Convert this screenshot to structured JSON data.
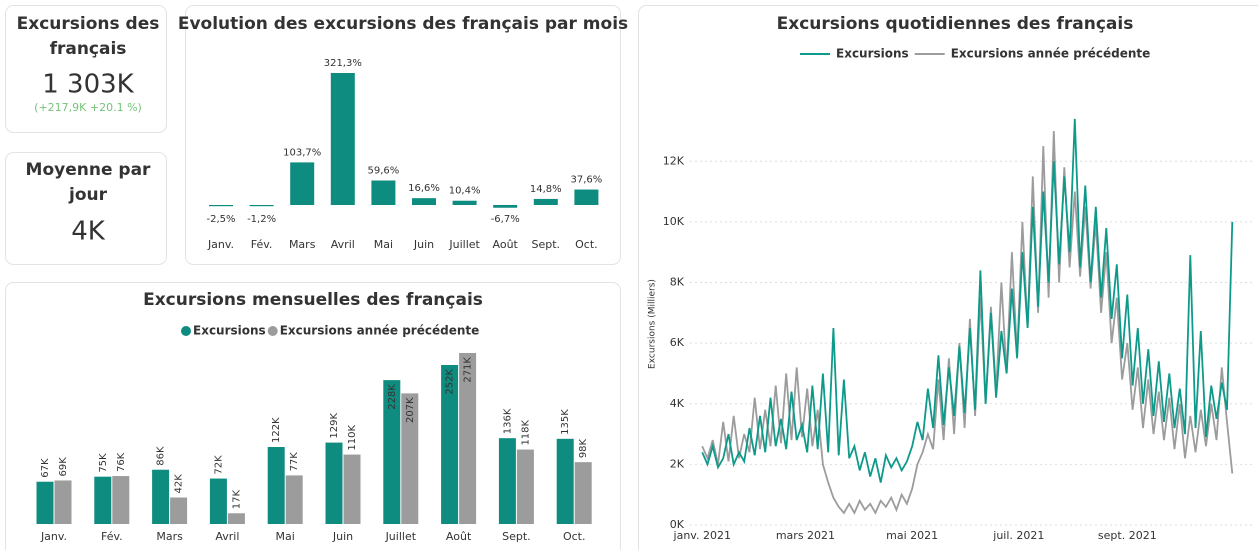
{
  "cards": [
    {
      "title": "Excursions des français",
      "value": "1 303K",
      "delta": "(+217,9K +20.1 %)"
    },
    {
      "title": "Moyenne par jour",
      "value": "4K"
    }
  ],
  "chart_data": [
    {
      "type": "bar",
      "title": "Evolution des excursions des français par mois",
      "categories": [
        "Janv.",
        "Fév.",
        "Mars",
        "Avril",
        "Mai",
        "Juin",
        "Juillet",
        "Août",
        "Sept.",
        "Oct."
      ],
      "values": [
        -2.5,
        -1.2,
        103.7,
        321.3,
        59.6,
        16.6,
        10.4,
        -6.7,
        14.8,
        37.6
      ],
      "value_labels": [
        "-2,5%",
        "-1,2%",
        "103,7%",
        "321,3%",
        "59,6%",
        "16,6%",
        "10,4%",
        "-6,7%",
        "14,8%",
        "37,6%"
      ],
      "color": "#0e8c7f"
    },
    {
      "type": "bar",
      "title": "Excursions mensuelles des français",
      "categories": [
        "Janv.",
        "Fév.",
        "Mars",
        "Avril",
        "Mai",
        "Juin",
        "Juillet",
        "Août",
        "Sept.",
        "Oct."
      ],
      "series": [
        {
          "name": "Excursions",
          "color": "#0e8c7f",
          "values": [
            67,
            75,
            86,
            72,
            122,
            129,
            228,
            252,
            136,
            135
          ],
          "value_labels": [
            "67K",
            "75K",
            "86K",
            "72K",
            "122K",
            "129K",
            "228K",
            "252K",
            "136K",
            "135K"
          ]
        },
        {
          "name": "Excursions année précédente",
          "color": "#9c9c9c",
          "values": [
            69,
            76,
            42,
            17,
            77,
            110,
            207,
            271,
            118,
            98
          ],
          "value_labels": [
            "69K",
            "76K",
            "42K",
            "17K",
            "77K",
            "110K",
            "207K",
            "271K",
            "118K",
            "98K"
          ]
        }
      ]
    },
    {
      "type": "line",
      "title": "Excursions quotidiennes des français",
      "ylabel": "Excursions (Milliers)",
      "grid": true,
      "x": [
        0,
        3,
        6,
        9,
        12,
        15,
        18,
        21,
        24,
        27,
        30,
        33,
        36,
        39,
        42,
        45,
        48,
        51,
        54,
        57,
        60,
        63,
        66,
        69,
        72,
        75,
        78,
        81,
        84,
        87,
        90,
        93,
        96,
        99,
        102,
        105,
        108,
        111,
        114,
        117,
        120,
        123,
        126,
        129,
        132,
        135,
        138,
        141,
        144,
        147,
        150,
        153,
        156,
        159,
        162,
        165,
        168,
        171,
        174,
        177,
        180,
        183,
        186,
        189,
        192,
        195,
        198,
        201,
        204,
        207,
        210,
        213,
        216,
        219,
        222,
        225,
        228,
        231,
        234,
        237,
        240,
        243,
        246,
        249,
        252,
        255,
        258,
        261,
        264,
        267,
        270,
        273,
        276,
        279,
        282,
        285,
        288,
        291,
        294,
        297,
        300,
        303
      ],
      "series": [
        {
          "name": "Excursions",
          "color": "#0e9a8a",
          "values": [
            2.4,
            2.0,
            2.6,
            1.9,
            2.2,
            3.0,
            2.0,
            2.4,
            2.1,
            3.2,
            2.3,
            3.6,
            2.4,
            4.2,
            2.6,
            3.5,
            2.5,
            4.4,
            2.8,
            3.3,
            2.4,
            4.6,
            2.5,
            5.0,
            2.4,
            6.5,
            2.3,
            4.8,
            2.2,
            2.6,
            1.8,
            2.4,
            1.6,
            2.2,
            1.4,
            2.3,
            1.9,
            2.2,
            1.8,
            2.1,
            2.6,
            3.4,
            2.8,
            4.5,
            3.2,
            5.6,
            3.3,
            5.2,
            3.6,
            5.9,
            3.7,
            6.5,
            3.8,
            8.4,
            4.0,
            7.0,
            4.2,
            6.4,
            5.0,
            7.8,
            5.5,
            9.0,
            6.5,
            10.5,
            7.2,
            11.0,
            8.0,
            12.0,
            8.6,
            11.5,
            9.0,
            13.4,
            8.5,
            11.2,
            8.0,
            10.5,
            7.5,
            9.8,
            6.8,
            8.6,
            5.5,
            7.6,
            4.6,
            6.5,
            4.0,
            5.8,
            3.6,
            5.4,
            3.4,
            5.0,
            3.2,
            4.5,
            3.0,
            8.9,
            3.2,
            6.4,
            2.9,
            4.6,
            3.5,
            4.7,
            3.8,
            10.0
          ]
        },
        {
          "name": "Excursions année précédente",
          "color": "#9c9c9c",
          "values": [
            2.6,
            2.2,
            2.8,
            2.0,
            3.4,
            2.1,
            3.6,
            2.2,
            3.0,
            2.4,
            4.2,
            2.5,
            3.8,
            2.6,
            4.6,
            2.7,
            5.0,
            2.8,
            5.2,
            2.9,
            4.5,
            2.6,
            3.8,
            2.0,
            1.4,
            0.9,
            0.6,
            0.4,
            0.7,
            0.4,
            0.8,
            0.5,
            0.7,
            0.4,
            0.8,
            0.6,
            0.9,
            0.5,
            1.0,
            0.7,
            1.2,
            2.0,
            2.4,
            3.0,
            2.5,
            4.8,
            2.8,
            5.5,
            3.0,
            6.0,
            3.2,
            6.8,
            3.6,
            7.5,
            4.0,
            7.2,
            4.4,
            8.0,
            5.0,
            9.0,
            5.6,
            10.0,
            6.5,
            11.5,
            7.0,
            12.5,
            7.5,
            13.0,
            8.0,
            11.8,
            8.5,
            11.0,
            8.2,
            10.5,
            7.8,
            10.0,
            7.0,
            9.0,
            6.0,
            7.5,
            4.8,
            6.0,
            3.8,
            5.2,
            3.2,
            4.8,
            3.0,
            4.4,
            2.8,
            4.2,
            2.5,
            4.0,
            2.2,
            3.6,
            2.4,
            3.8,
            2.6,
            4.0,
            2.8,
            5.2,
            3.4,
            1.7
          ]
        }
      ],
      "xlim": [
        -7,
        316
      ],
      "xticks": [
        {
          "value": 0,
          "label": "janv. 2021"
        },
        {
          "value": 59,
          "label": "mars 2021"
        },
        {
          "value": 120,
          "label": "mai 2021"
        },
        {
          "value": 181,
          "label": "juil. 2021"
        },
        {
          "value": 243,
          "label": "sept. 2021"
        }
      ],
      "ylim": [
        0,
        12.6
      ],
      "yticks": [
        {
          "value": 0,
          "label": "0K"
        },
        {
          "value": 2,
          "label": "2K"
        },
        {
          "value": 4,
          "label": "4K"
        },
        {
          "value": 6,
          "label": "6K"
        },
        {
          "value": 8,
          "label": "8K"
        },
        {
          "value": 10,
          "label": "10K"
        },
        {
          "value": 12,
          "label": "12K"
        }
      ]
    }
  ]
}
